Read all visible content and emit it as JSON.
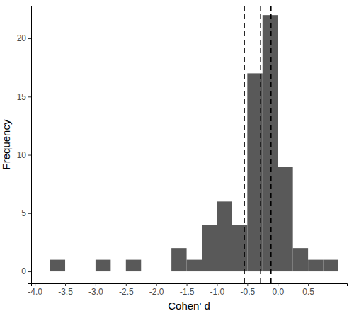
{
  "chart_data": {
    "type": "histogram",
    "x_label": "Cohen' d",
    "y_label": "Frequency",
    "bins": [
      -3.75,
      -3.5,
      -3.25,
      -3.0,
      -2.75,
      -2.5,
      -2.25,
      -2.0,
      -1.75,
      -1.5,
      -1.25,
      -1.0,
      -0.75,
      -0.5,
      -0.25,
      0.0,
      0.25,
      0.5,
      0.75,
      1.0
    ],
    "values": [
      1,
      0,
      0,
      1,
      0,
      1,
      0,
      0,
      2,
      1,
      4,
      6,
      4,
      17,
      22,
      9,
      2,
      1,
      1
    ],
    "color": "#595959",
    "reference_lines": [
      -0.55,
      -0.28,
      -0.11
    ],
    "line_style": "dashed",
    "xlim": [
      -4.06,
      1.14
    ],
    "xticks": [
      {
        "value": -4,
        "label": "-4.0"
      },
      -3.5,
      {
        "value": -3,
        "label": "-3.0"
      },
      -2.5,
      {
        "value": -2,
        "label": "-2.0"
      },
      -1.5,
      {
        "value": -1,
        "label": "-1.0"
      },
      -0.5,
      {
        "value": 0,
        "label": "0.0"
      },
      0.5
    ],
    "ylim": [
      -1.03,
      22.8
    ],
    "yticks": [
      0,
      5,
      10,
      15,
      20
    ]
  }
}
